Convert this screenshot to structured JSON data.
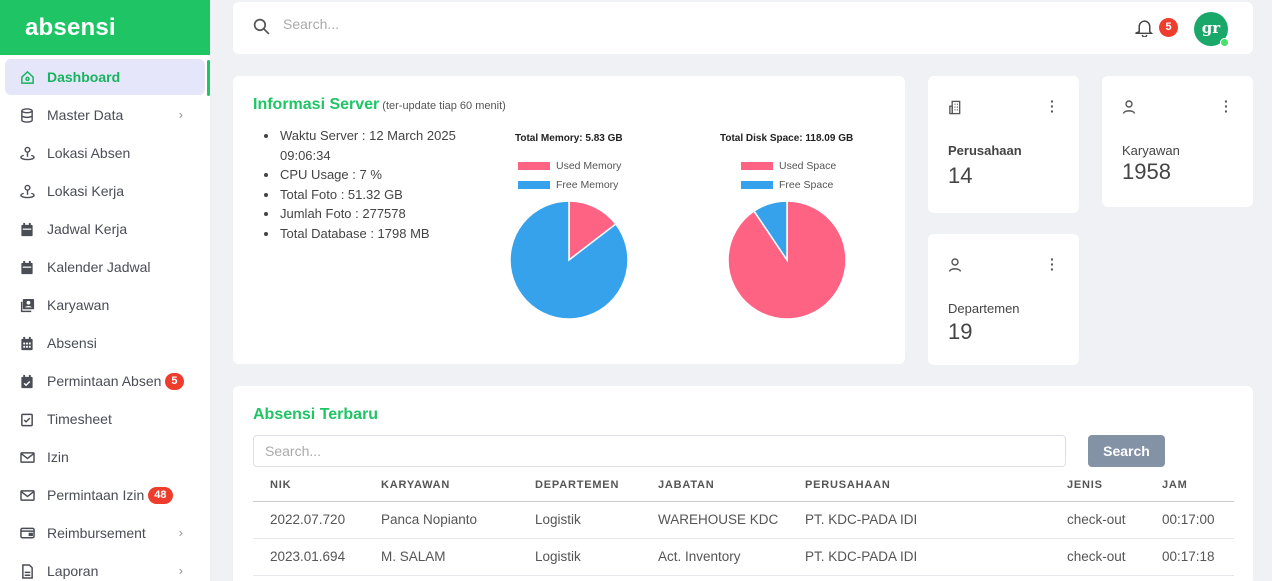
{
  "brand": "absensi",
  "sidebar": {
    "items": [
      {
        "label": "Dashboard",
        "icon": "home-icon",
        "active": true
      },
      {
        "label": "Master Data",
        "icon": "database-icon",
        "has_chevron": true
      },
      {
        "label": "Lokasi Absen",
        "icon": "location-icon"
      },
      {
        "label": "Lokasi Kerja",
        "icon": "location-icon"
      },
      {
        "label": "Jadwal Kerja",
        "icon": "calendar-icon"
      },
      {
        "label": "Kalender Jadwal",
        "icon": "calendar-icon"
      },
      {
        "label": "Karyawan",
        "icon": "id-card-icon"
      },
      {
        "label": "Absensi",
        "icon": "calendar-grid-icon"
      },
      {
        "label": "Permintaan Absen",
        "icon": "calendar-check-icon",
        "badge": "5"
      },
      {
        "label": "Timesheet",
        "icon": "checkbox-icon"
      },
      {
        "label": "Izin",
        "icon": "mail-icon"
      },
      {
        "label": "Permintaan Izin",
        "icon": "mail-icon",
        "badge": "48"
      },
      {
        "label": "Reimbursement",
        "icon": "wallet-icon",
        "has_chevron": true
      },
      {
        "label": "Laporan",
        "icon": "file-icon",
        "has_chevron": true
      }
    ]
  },
  "topbar": {
    "search_placeholder": "Search...",
    "notification_count": "5",
    "avatar_initials": "gr"
  },
  "server": {
    "title": "Informasi Server",
    "subtitle": "(ter-update tiap 60 menit)",
    "info": [
      "Waktu Server : 12 March 2025 09:06:34",
      "CPU Usage : 7 %",
      "Total Foto : 51.32 GB",
      "Jumlah Foto : 277578",
      "Total Database : 1798 MB"
    ]
  },
  "chart_data": [
    {
      "type": "pie",
      "title": "Total Memory: 5.83 GB",
      "labels": [
        "Used Memory",
        "Free Memory"
      ],
      "values": [
        0.85,
        4.98
      ],
      "colors": [
        "#ff6384",
        "#36a2eb"
      ]
    },
    {
      "type": "pie",
      "title": "Total Disk Space: 118.09 GB",
      "labels": [
        "Used Space",
        "Free Space"
      ],
      "values": [
        106.95,
        11.14
      ],
      "colors": [
        "#ff6384",
        "#36a2eb"
      ]
    }
  ],
  "stats": {
    "perusahaan": {
      "label": "Perusahaan",
      "value": "14"
    },
    "karyawan": {
      "label": "Karyawan",
      "value": "1958"
    },
    "departemen": {
      "label": "Departemen",
      "value": "19"
    }
  },
  "absensi": {
    "title": "Absensi Terbaru",
    "search_placeholder": "Search...",
    "search_button": "Search",
    "columns": [
      "NIK",
      "KARYAWAN",
      "DEPARTEMEN",
      "JABATAN",
      "PERUSAHAAN",
      "JENIS",
      "JAM"
    ],
    "rows": [
      [
        "2022.07.720",
        "Panca Nopianto",
        "Logistik",
        "WAREHOUSE KDC",
        "PT. KDC-PADA IDI",
        "check-out",
        "00:17:00"
      ],
      [
        "2023.01.694",
        "M. SALAM",
        "Logistik",
        "Act. Inventory",
        "PT. KDC-PADA IDI",
        "check-out",
        "00:17:18"
      ]
    ]
  }
}
